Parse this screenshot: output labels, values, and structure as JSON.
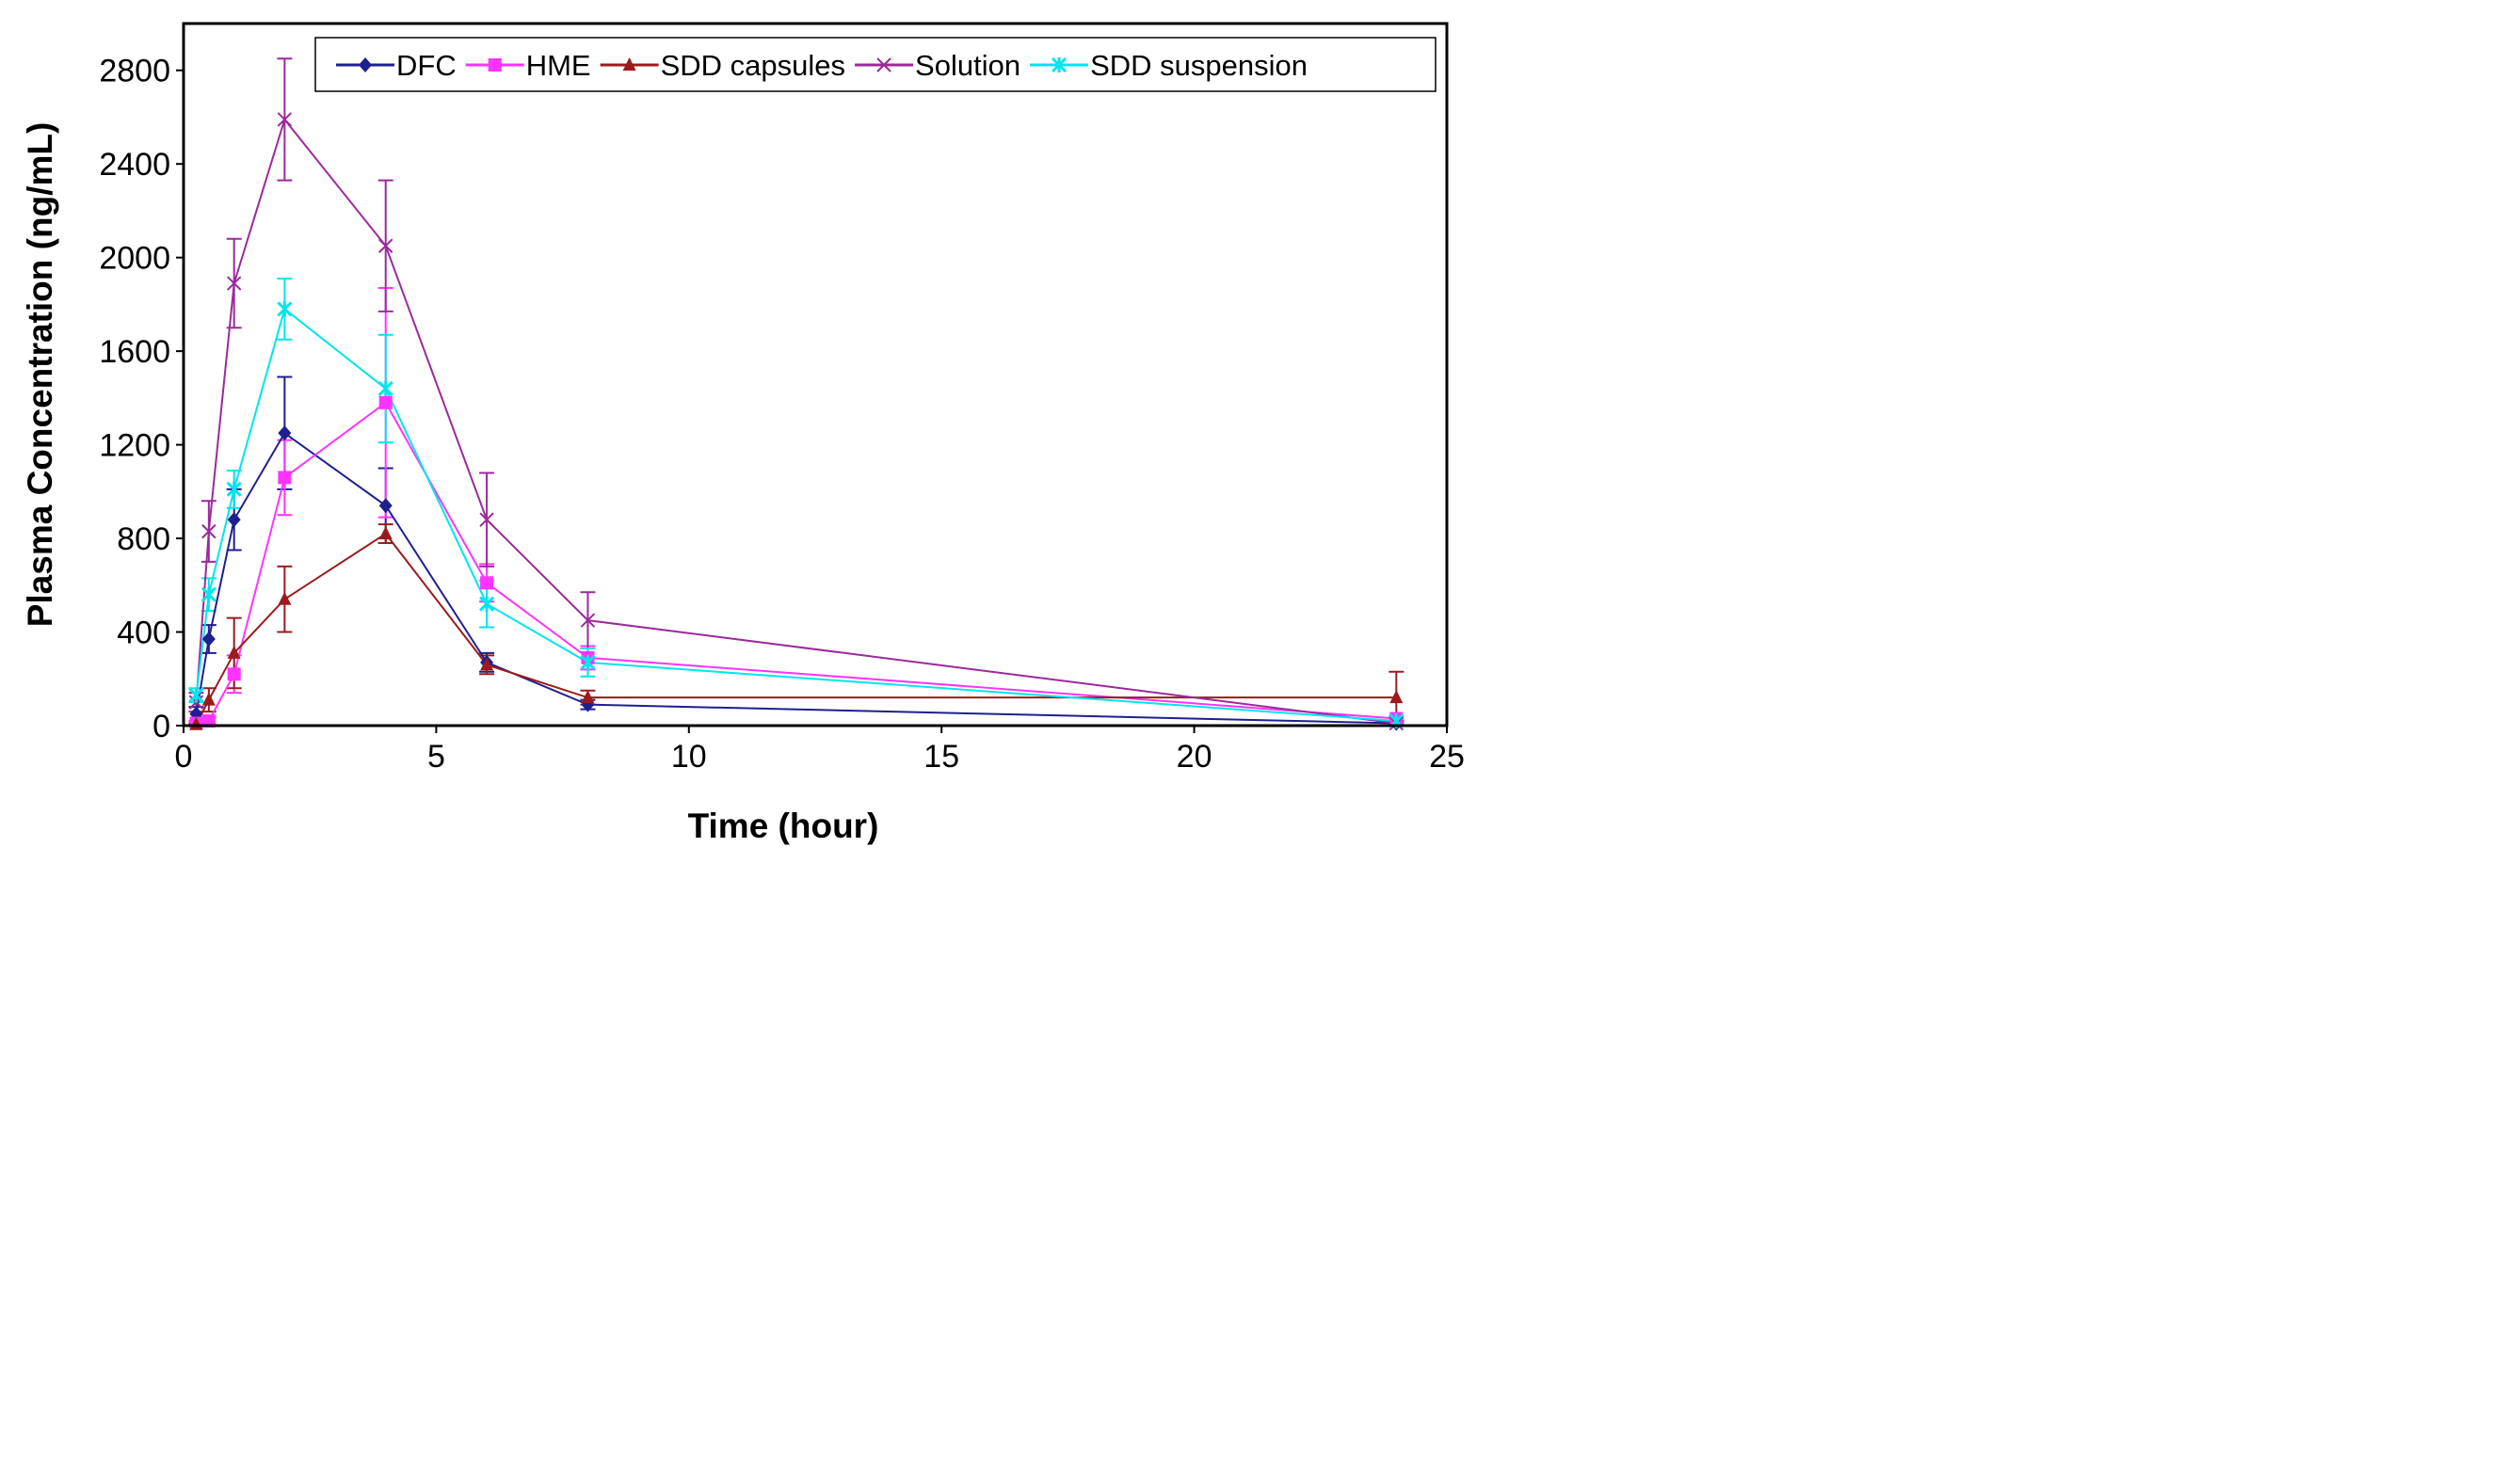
{
  "chart_data": {
    "type": "line",
    "title": "",
    "xlabel": "Time (hour)",
    "ylabel": "Plasma Concentration  (ng/mL)",
    "xlim": [
      0,
      25
    ],
    "ylim": [
      0,
      3000
    ],
    "x_ticks": [
      0,
      5,
      10,
      15,
      20,
      25
    ],
    "x_tick_labels": [
      "0",
      "5",
      "10",
      "15",
      "20",
      "25"
    ],
    "y_ticks": [
      0,
      400,
      800,
      1200,
      1600,
      2000,
      2400,
      2800
    ],
    "y_tick_labels": [
      "0",
      "400",
      "800",
      "1200",
      "1600",
      "2000",
      "2400",
      "2800"
    ],
    "grid": false,
    "legend_position": "top",
    "x": [
      0.25,
      0.5,
      1,
      2,
      4,
      6,
      8,
      24
    ],
    "series": [
      {
        "name": "DFC",
        "color": "#1f1f8f",
        "marker": "diamond",
        "values": [
          50,
          370,
          880,
          1250,
          940,
          270,
          90,
          10
        ],
        "errors": [
          30,
          60,
          130,
          240,
          160,
          40,
          20,
          5
        ]
      },
      {
        "name": "HME",
        "color": "#ff33ff",
        "marker": "square",
        "values": [
          10,
          20,
          220,
          1060,
          1380,
          610,
          290,
          30
        ],
        "errors": [
          10,
          15,
          80,
          160,
          490,
          80,
          50,
          10
        ]
      },
      {
        "name": "SDD capsules",
        "color": "#9b1b1b",
        "marker": "triangle",
        "values": [
          5,
          110,
          310,
          540,
          820,
          260,
          120,
          120
        ],
        "errors": [
          5,
          50,
          150,
          140,
          40,
          40,
          30,
          110
        ]
      },
      {
        "name": "Solution",
        "color": "#9b2a9b",
        "marker": "x",
        "values": [
          100,
          830,
          1890,
          2590,
          2050,
          880,
          450,
          10
        ],
        "errors": [
          40,
          130,
          190,
          260,
          280,
          200,
          120,
          10
        ]
      },
      {
        "name": "SDD suspension",
        "color": "#00e5ee",
        "marker": "star",
        "values": [
          130,
          560,
          1010,
          1780,
          1440,
          520,
          270,
          20
        ],
        "errors": [
          30,
          70,
          80,
          130,
          230,
          100,
          60,
          10
        ]
      }
    ]
  }
}
